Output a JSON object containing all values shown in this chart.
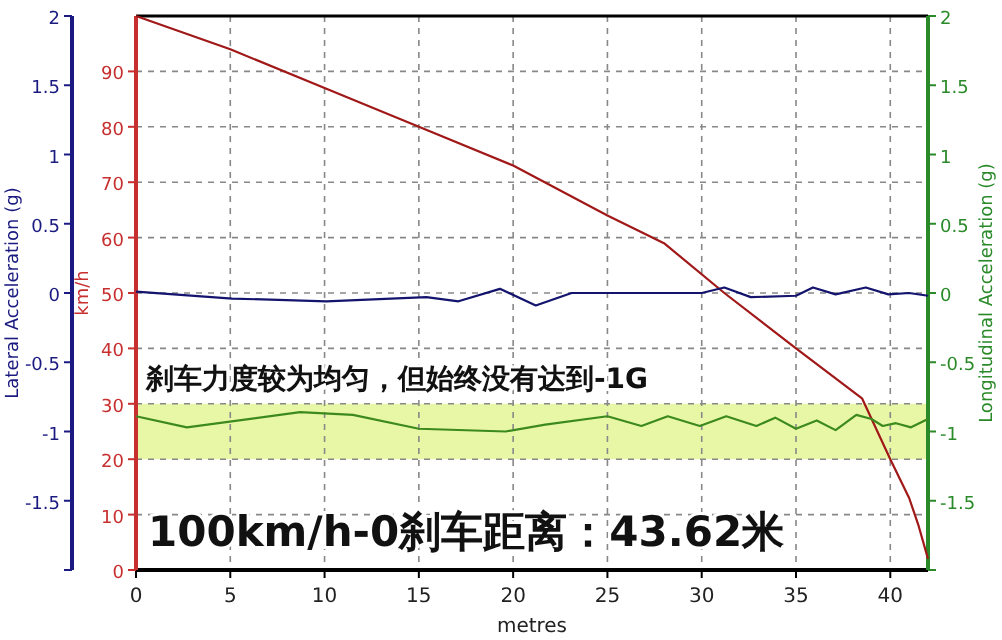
{
  "chart_data": {
    "type": "line",
    "xlabel": "metres",
    "ylabel": "km/h",
    "y2label": "Longitudinal Acceleration (g)",
    "y3label": "Lateral Acceleration (g)",
    "xlim": [
      0,
      42
    ],
    "xticks": [
      0,
      5,
      10,
      15,
      20,
      25,
      30,
      35,
      40
    ],
    "ylim": [
      0,
      100
    ],
    "yticks": [
      0,
      10,
      20,
      30,
      40,
      50,
      60,
      70,
      80,
      90
    ],
    "y2lim": [
      -2,
      2
    ],
    "y2ticks": [
      {
        "value": -2,
        "label": null
      },
      -1.5,
      -1,
      -0.5,
      0,
      0.5,
      1,
      1.5,
      2
    ],
    "y3lim": [
      -2,
      2
    ],
    "y3ticks": [
      {
        "value": -2,
        "label": null
      },
      -1.5,
      -1,
      -0.5,
      0,
      0.5,
      1,
      1.5,
      2
    ],
    "grid": true,
    "line_style": "solid",
    "bands": [
      {
        "axis": "y2",
        "from": -1.2,
        "to": -0.8,
        "color": "#e8f7a6"
      }
    ],
    "series": [
      {
        "color": "#a01818",
        "axis": "y",
        "x": [
          0,
          5,
          10,
          15,
          20,
          25,
          28,
          31.2,
          35,
          38.5,
          40,
          41,
          41.5,
          42
        ],
        "values": [
          100,
          94,
          87,
          80,
          73,
          64,
          59,
          50,
          40,
          31,
          20,
          13,
          8,
          2
        ]
      },
      {
        "color": "#14146e",
        "axis": "y3",
        "x": [
          0,
          5.1,
          10.1,
          15.4,
          17.1,
          19.3,
          21.2,
          23.1,
          30,
          31.2,
          32.6,
          35,
          35.9,
          37.1,
          38.7,
          39.9,
          41,
          42
        ],
        "values": [
          0.01,
          -0.04,
          -0.06,
          -0.03,
          -0.06,
          0.03,
          -0.09,
          0,
          0,
          0.04,
          -0.03,
          -0.02,
          0.04,
          -0.01,
          0.04,
          -0.01,
          0,
          -0.02
        ]
      },
      {
        "color": "#3c8a1e",
        "axis": "y2",
        "x": [
          0,
          2.7,
          8.7,
          11.5,
          15,
          19.6,
          21.7,
          25,
          26.8,
          28.2,
          29.9,
          31.3,
          32.9,
          33.9,
          35,
          36.1,
          37.1,
          38.2,
          39,
          39.6,
          40.3,
          41.1,
          42
        ],
        "values": [
          -0.89,
          -0.97,
          -0.86,
          -0.88,
          -0.98,
          -1.0,
          -0.95,
          -0.89,
          -0.96,
          -0.89,
          -0.96,
          -0.89,
          -0.96,
          -0.9,
          -0.98,
          -0.92,
          -0.99,
          -0.88,
          -0.91,
          -0.96,
          -0.94,
          -0.97,
          -0.91
        ]
      }
    ],
    "annotations": [
      "刹车力度较为均匀，但始终没有达到-1G",
      "100km/h-0刹车距离：43.62米"
    ]
  }
}
